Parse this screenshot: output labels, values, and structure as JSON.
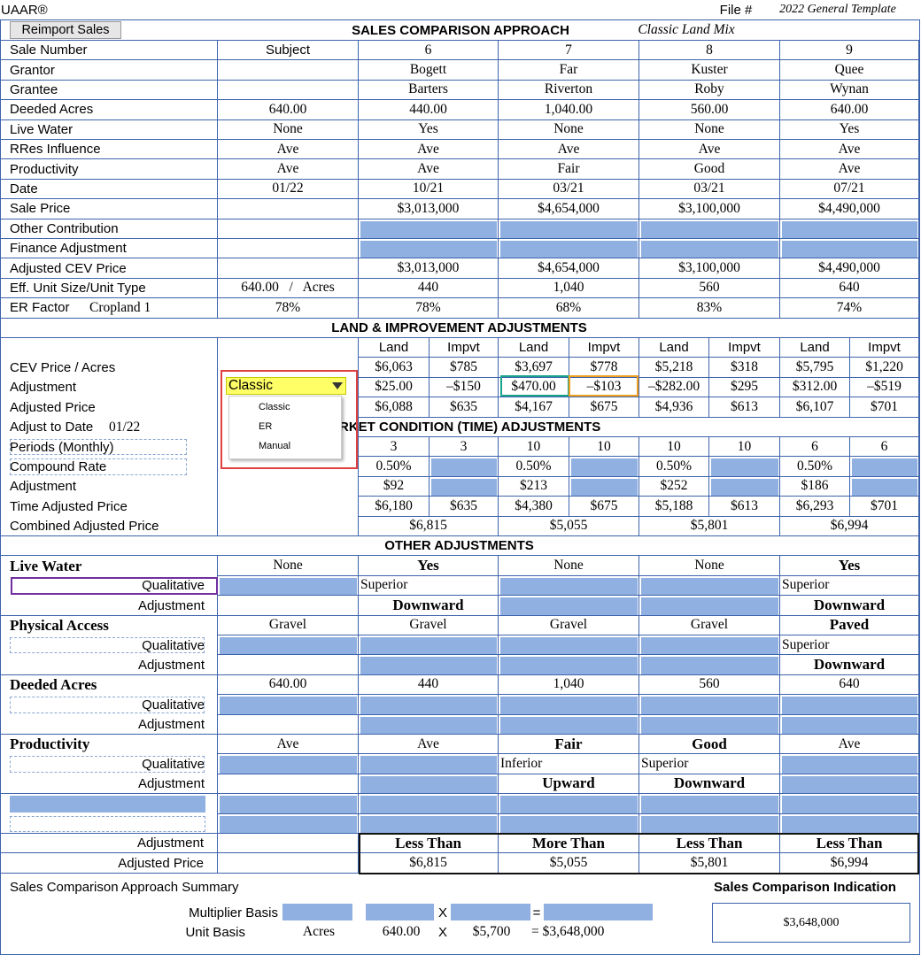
{
  "header": {
    "brand": "UAAR®",
    "file_label": "File #",
    "template": "2022 General Template",
    "button": "Reimport Sales",
    "title": "SALES COMPARISON APPROACH",
    "subtitle": "Classic Land Mix"
  },
  "top_rows": [
    {
      "label": "Sale Number",
      "subject": "Subject",
      "comps": [
        "6",
        "7",
        "8",
        "9"
      ]
    },
    {
      "label": "Grantor",
      "comps": [
        "Bogett",
        "Far",
        "Kuster",
        "Quee"
      ]
    },
    {
      "label": "Grantee",
      "comps": [
        "Barters",
        "Riverton",
        "Roby",
        "Wynan"
      ]
    },
    {
      "label": "Deeded Acres",
      "subject": "640.00",
      "comps": [
        "440.00",
        "1,040.00",
        "560.00",
        "640.00"
      ]
    },
    {
      "label": "Live Water",
      "subject": "None",
      "comps": [
        "Yes",
        "None",
        "None",
        "Yes"
      ]
    },
    {
      "label": "RRes Influence",
      "subject": "Ave",
      "comps": [
        "Ave",
        "Ave",
        "Ave",
        "Ave"
      ]
    },
    {
      "label": "Productivity",
      "subject": "Ave",
      "comps": [
        "Ave",
        "Fair",
        "Good",
        "Ave"
      ]
    },
    {
      "label": "Date",
      "subject": "01/22",
      "comps": [
        "10/21",
        "03/21",
        "03/21",
        "07/21"
      ]
    },
    {
      "label": "Sale Price",
      "comps": [
        "$3,013,000",
        "$4,654,000",
        "$3,100,000",
        "$4,490,000"
      ]
    },
    {
      "label": "Other Contribution"
    },
    {
      "label": "Finance Adjustment"
    },
    {
      "label": "Adjusted CEV Price",
      "comps": [
        "$3,013,000",
        "$4,654,000",
        "$3,100,000",
        "$4,490,000"
      ]
    },
    {
      "label": "Eff. Unit Size/Unit Type",
      "subject": "640.00   /   Acres",
      "comps": [
        "440",
        "1,040",
        "560",
        "640"
      ]
    },
    {
      "label": "ER Factor",
      "label_detail": "Cropland 1",
      "subject": "78%",
      "comps": [
        "78%",
        "68%",
        "83%",
        "74%"
      ]
    }
  ],
  "land": {
    "title": "LAND & IMPROVEMENT ADJUSTMENTS",
    "columns": [
      "Land",
      "Impvt",
      "Land",
      "Impvt",
      "Land",
      "Impvt",
      "Land",
      "Impvt"
    ],
    "rows": [
      {
        "label": "CEV Price / Acres",
        "values": [
          "$6,063",
          "$785",
          "$3,697",
          "$778",
          "$5,218",
          "$318",
          "$5,795",
          "$1,220"
        ]
      },
      {
        "label": "Adjustment",
        "values": [
          "$25.00",
          "–$150",
          "$470.00",
          "–$103",
          "–$282.00",
          "$295",
          "$312.00",
          "–$519"
        ]
      },
      {
        "label": "Adjusted Price",
        "values": [
          "$6,088",
          "$635",
          "$4,167",
          "$675",
          "$4,936",
          "$613",
          "$6,107",
          "$701"
        ]
      }
    ],
    "method": {
      "selected": "Classic",
      "options": [
        "Classic",
        "ER",
        "Manual"
      ]
    }
  },
  "market": {
    "title": "MARKET CONDITION (TIME) ADJUSTMENTS",
    "date_label": "Adjust to Date",
    "date": "01/22",
    "rows": [
      {
        "label": "Periods (Monthly)",
        "values": [
          "3",
          "3",
          "10",
          "10",
          "10",
          "10",
          "6",
          "6"
        ]
      },
      {
        "label": "Compound Rate",
        "values": [
          "0.50%",
          null,
          "0.50%",
          null,
          "0.50%",
          null,
          "0.50%",
          null
        ]
      },
      {
        "label": "Adjustment",
        "values": [
          "$92",
          null,
          "$213",
          null,
          "$252",
          null,
          "$186",
          null
        ]
      },
      {
        "label": "Time Adjusted Price",
        "values": [
          "$6,180",
          "$635",
          "$4,380",
          "$675",
          "$5,188",
          "$613",
          "$6,293",
          "$701"
        ]
      }
    ],
    "combined": {
      "label": "Combined Adjusted Price",
      "values": [
        "$6,815",
        "$5,055",
        "$5,801",
        "$6,994"
      ]
    }
  },
  "other": {
    "title": "OTHER ADJUSTMENTS",
    "qualitative_label": "Qualitative",
    "adjustment_label": "Adjustment",
    "groups": [
      {
        "title": "Live Water",
        "subject": "None",
        "comps": [
          "Yes",
          "None",
          "None",
          "Yes"
        ],
        "qualitative": [
          "Superior",
          null,
          null,
          "Superior"
        ],
        "adjustment": [
          "Downward",
          null,
          null,
          "Downward"
        ]
      },
      {
        "title": "Physical Access",
        "subject": "Gravel",
        "comps": [
          "Gravel",
          "Gravel",
          "Gravel",
          "Paved"
        ],
        "qualitative": [
          null,
          null,
          null,
          "Superior"
        ],
        "adjustment": [
          null,
          null,
          null,
          "Downward"
        ]
      },
      {
        "title": "Deeded Acres",
        "subject": "640.00",
        "comps": [
          "440",
          "1,040",
          "560",
          "640"
        ],
        "qualitative": [
          null,
          null,
          null,
          null
        ],
        "adjustment": [
          null,
          null,
          null,
          null
        ]
      },
      {
        "title": "Productivity",
        "subject": "Ave",
        "comps": [
          "Ave",
          "Fair",
          "Good",
          "Ave"
        ],
        "qualitative": [
          null,
          "Inferior",
          "Superior",
          null
        ],
        "adjustment": [
          null,
          "Upward",
          "Downward",
          null
        ]
      }
    ],
    "final": {
      "adjustment_label": "Adjustment",
      "adjustments": [
        "Less Than",
        "More Than",
        "Less Than",
        "Less Than"
      ],
      "price_label": "Adjusted Price",
      "prices": [
        "$6,815",
        "$5,055",
        "$5,801",
        "$6,994"
      ]
    }
  },
  "summary": {
    "title": "Sales Comparison Approach Summary",
    "indication_label": "Sales Comparison Indication",
    "multiplier_label": "Multiplier Basis",
    "unit_label": "Unit Basis",
    "unit_type": "Acres",
    "units": "640.00",
    "times": "X",
    "equals": "=",
    "unit_price": "$5,700",
    "total": "= $3,648,000",
    "indication": "$3,648,000"
  }
}
